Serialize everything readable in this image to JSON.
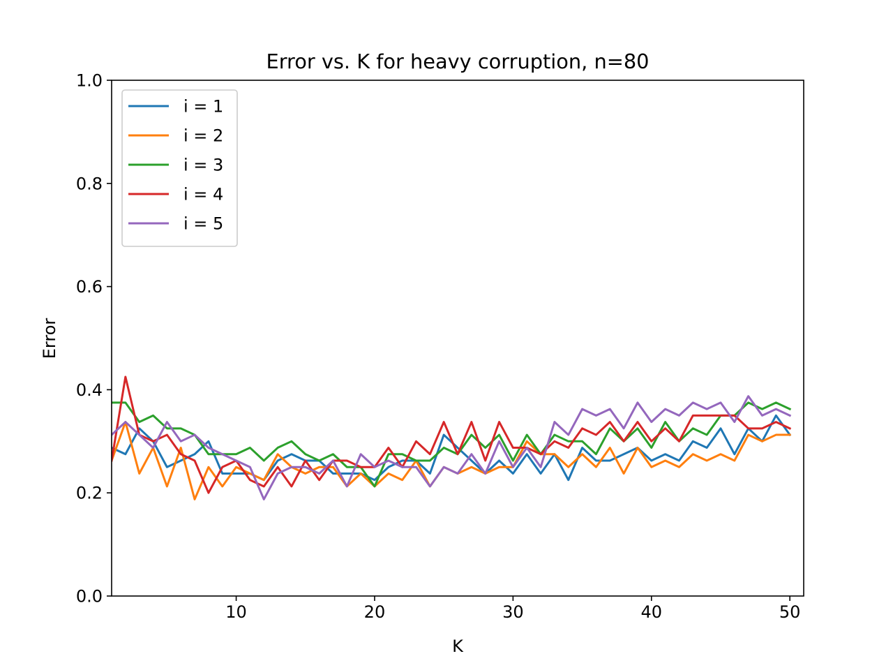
{
  "chart_data": {
    "type": "line",
    "title": "Error vs. K for heavy corruption, n=80",
    "xlabel": "K",
    "ylabel": "Error",
    "xlim": [
      1,
      51
    ],
    "ylim": [
      0.0,
      1.0
    ],
    "xticks": [
      10,
      20,
      30,
      40,
      50
    ],
    "xtick_labels": [
      "10",
      "20",
      "30",
      "40",
      "50"
    ],
    "yticks": [
      0.0,
      0.2,
      0.4,
      0.6,
      0.8,
      1.0
    ],
    "ytick_labels": [
      "0.0",
      "0.2",
      "0.4",
      "0.6",
      "0.8",
      "1.0"
    ],
    "grid": false,
    "legend_position": "top-left",
    "x": [
      1,
      2,
      3,
      4,
      5,
      6,
      7,
      8,
      9,
      10,
      11,
      12,
      13,
      14,
      15,
      16,
      17,
      18,
      19,
      20,
      21,
      22,
      23,
      24,
      25,
      26,
      27,
      28,
      29,
      30,
      31,
      32,
      33,
      34,
      35,
      36,
      37,
      38,
      39,
      40,
      41,
      42,
      43,
      44,
      45,
      46,
      47,
      48,
      49,
      50
    ],
    "series": [
      {
        "name": "i = 1",
        "color": "#1f77b4",
        "values": [
          0.2875,
          0.275,
          0.325,
          0.3,
          0.25,
          0.2625,
          0.275,
          0.3,
          0.2375,
          0.2375,
          0.2375,
          0.225,
          0.2625,
          0.275,
          0.2625,
          0.2625,
          0.2375,
          0.2375,
          0.2375,
          0.225,
          0.25,
          0.2625,
          0.2625,
          0.2375,
          0.3125,
          0.2875,
          0.2625,
          0.2375,
          0.2625,
          0.2375,
          0.275,
          0.2375,
          0.275,
          0.225,
          0.2875,
          0.2625,
          0.2625,
          0.275,
          0.2875,
          0.2625,
          0.275,
          0.2625,
          0.3,
          0.2875,
          0.325,
          0.275,
          0.325,
          0.3,
          0.35,
          0.3125
        ]
      },
      {
        "name": "i = 2",
        "color": "#ff7f0e",
        "values": [
          0.2625,
          0.3375,
          0.2375,
          0.2875,
          0.2125,
          0.2875,
          0.1875,
          0.25,
          0.2125,
          0.25,
          0.2375,
          0.225,
          0.275,
          0.25,
          0.2375,
          0.25,
          0.25,
          0.2125,
          0.2375,
          0.2125,
          0.2375,
          0.225,
          0.2625,
          0.2125,
          0.25,
          0.2375,
          0.25,
          0.2375,
          0.25,
          0.25,
          0.3,
          0.275,
          0.275,
          0.25,
          0.275,
          0.25,
          0.2875,
          0.2375,
          0.2875,
          0.25,
          0.2625,
          0.25,
          0.275,
          0.2625,
          0.275,
          0.2625,
          0.3125,
          0.3,
          0.3125,
          0.3125
        ]
      },
      {
        "name": "i = 3",
        "color": "#2ca02c",
        "values": [
          0.375,
          0.375,
          0.3375,
          0.35,
          0.325,
          0.325,
          0.3125,
          0.275,
          0.275,
          0.275,
          0.2875,
          0.2625,
          0.2875,
          0.3,
          0.275,
          0.2625,
          0.275,
          0.25,
          0.25,
          0.2125,
          0.275,
          0.275,
          0.2625,
          0.2625,
          0.2875,
          0.275,
          0.3125,
          0.2875,
          0.3125,
          0.2625,
          0.3125,
          0.275,
          0.3125,
          0.3,
          0.3,
          0.275,
          0.325,
          0.3,
          0.325,
          0.2875,
          0.3375,
          0.3,
          0.325,
          0.3125,
          0.35,
          0.35,
          0.375,
          0.3625,
          0.375,
          0.3625
        ]
      },
      {
        "name": "i = 4",
        "color": "#d62728",
        "values": [
          0.2625,
          0.425,
          0.3125,
          0.3,
          0.3125,
          0.275,
          0.2625,
          0.2,
          0.25,
          0.2625,
          0.225,
          0.2125,
          0.25,
          0.2125,
          0.2625,
          0.225,
          0.2625,
          0.2625,
          0.25,
          0.25,
          0.2875,
          0.25,
          0.3,
          0.275,
          0.3375,
          0.275,
          0.3375,
          0.2625,
          0.3375,
          0.2875,
          0.2875,
          0.275,
          0.3,
          0.2875,
          0.325,
          0.3125,
          0.3375,
          0.3,
          0.3375,
          0.3,
          0.325,
          0.3,
          0.35,
          0.35,
          0.35,
          0.35,
          0.325,
          0.325,
          0.3375,
          0.325
        ]
      },
      {
        "name": "i = 5",
        "color": "#9467bd",
        "values": [
          0.3125,
          0.3375,
          0.3125,
          0.2875,
          0.3375,
          0.3,
          0.3125,
          0.2875,
          0.275,
          0.2625,
          0.25,
          0.1875,
          0.2375,
          0.25,
          0.25,
          0.2375,
          0.2625,
          0.2125,
          0.275,
          0.25,
          0.2625,
          0.25,
          0.25,
          0.2125,
          0.25,
          0.2375,
          0.275,
          0.2375,
          0.3,
          0.25,
          0.2875,
          0.25,
          0.3375,
          0.3125,
          0.3625,
          0.35,
          0.3625,
          0.325,
          0.375,
          0.3375,
          0.3625,
          0.35,
          0.375,
          0.3625,
          0.375,
          0.3375,
          0.3875,
          0.35,
          0.3625,
          0.35
        ]
      }
    ]
  }
}
